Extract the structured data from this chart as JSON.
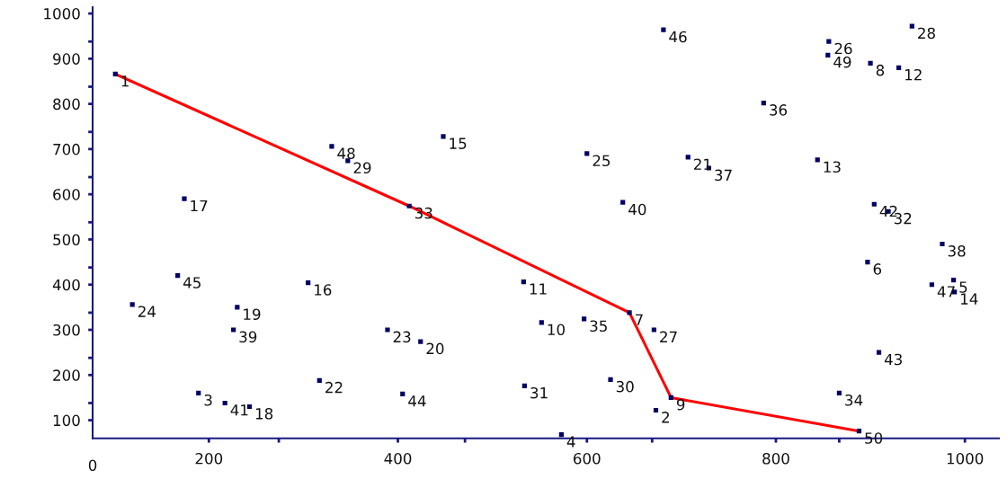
{
  "chart_data": {
    "type": "scatter",
    "xlim": [
      77,
      1036
    ],
    "ylim": [
      60,
      1014
    ],
    "xticks": [
      {
        "value": 200,
        "label": "200"
      },
      {
        "value": 274,
        "label": null
      },
      {
        "value": 400,
        "label": "400"
      },
      {
        "value": 471,
        "label": null
      },
      {
        "value": 600,
        "label": "600"
      },
      {
        "value": 669,
        "label": null
      },
      {
        "value": 800,
        "label": "800"
      },
      {
        "value": 867,
        "label": null
      },
      {
        "value": 1000,
        "label": "1000"
      }
    ],
    "yticks": [
      {
        "value": 138,
        "label": null
      },
      {
        "value": 100,
        "label": "100"
      },
      {
        "value": 200,
        "label": "200"
      },
      {
        "value": 238,
        "label": null
      },
      {
        "value": 300,
        "label": "300"
      },
      {
        "value": 338,
        "label": null
      },
      {
        "value": 400,
        "label": "400"
      },
      {
        "value": 438,
        "label": null
      },
      {
        "value": 500,
        "label": "500"
      },
      {
        "value": 538,
        "label": null
      },
      {
        "value": 600,
        "label": "600"
      },
      {
        "value": 638,
        "label": null
      },
      {
        "value": 700,
        "label": "700"
      },
      {
        "value": 738,
        "label": null
      },
      {
        "value": 800,
        "label": "800"
      },
      {
        "value": 838,
        "label": null
      },
      {
        "value": 900,
        "label": "900"
      },
      {
        "value": 938,
        "label": null
      },
      {
        "value": 1000,
        "label": "1000"
      }
    ],
    "annotations": [
      "0",
      {
        "text": "1",
        "x": 101,
        "y": 866
      },
      {
        "text": "2",
        "x": 673,
        "y": 122
      },
      {
        "text": "3",
        "x": 189,
        "y": 160
      },
      {
        "text": "4",
        "x": 573,
        "y": 68
      },
      {
        "text": "5",
        "x": 988,
        "y": 410
      },
      {
        "text": "6",
        "x": 897,
        "y": 450
      },
      {
        "text": "7",
        "x": 645,
        "y": 338
      },
      {
        "text": "8",
        "x": 900,
        "y": 890
      },
      {
        "text": "9",
        "x": 689,
        "y": 150
      },
      {
        "text": "10",
        "x": 552,
        "y": 316
      },
      {
        "text": "11",
        "x": 533,
        "y": 406
      },
      {
        "text": "12",
        "x": 930,
        "y": 880
      },
      {
        "text": "13",
        "x": 844,
        "y": 676
      },
      {
        "text": "14",
        "x": 989,
        "y": 384
      },
      {
        "text": "15",
        "x": 448,
        "y": 728
      },
      {
        "text": "16",
        "x": 305,
        "y": 404
      },
      {
        "text": "17",
        "x": 174,
        "y": 590
      },
      {
        "text": "18",
        "x": 243,
        "y": 130
      },
      {
        "text": "19",
        "x": 230,
        "y": 350
      },
      {
        "text": "20",
        "x": 424,
        "y": 274
      },
      {
        "text": "21",
        "x": 707,
        "y": 682
      },
      {
        "text": "22",
        "x": 317,
        "y": 188
      },
      {
        "text": "23",
        "x": 389,
        "y": 300
      },
      {
        "text": "24",
        "x": 119,
        "y": 356
      },
      {
        "text": "25",
        "x": 600,
        "y": 690
      },
      {
        "text": "26",
        "x": 856,
        "y": 938
      },
      {
        "text": "27",
        "x": 671,
        "y": 300
      },
      {
        "text": "28",
        "x": 944,
        "y": 972
      },
      {
        "text": "29",
        "x": 347,
        "y": 674
      },
      {
        "text": "30",
        "x": 625,
        "y": 190
      },
      {
        "text": "31",
        "x": 534,
        "y": 176
      },
      {
        "text": "32",
        "x": 919,
        "y": 562
      },
      {
        "text": "33",
        "x": 412,
        "y": 574
      },
      {
        "text": "34",
        "x": 867,
        "y": 160
      },
      {
        "text": "35",
        "x": 597,
        "y": 324
      },
      {
        "text": "36",
        "x": 787,
        "y": 802
      },
      {
        "text": "37",
        "x": 729,
        "y": 658
      },
      {
        "text": "38",
        "x": 976,
        "y": 490
      },
      {
        "text": "39",
        "x": 226,
        "y": 300
      },
      {
        "text": "40",
        "x": 638,
        "y": 582
      },
      {
        "text": "41",
        "x": 217,
        "y": 138
      },
      {
        "text": "42",
        "x": 904,
        "y": 578
      },
      {
        "text": "43",
        "x": 909,
        "y": 250
      },
      {
        "text": "44",
        "x": 405,
        "y": 158
      },
      {
        "text": "45",
        "x": 167,
        "y": 420
      },
      {
        "text": "46",
        "x": 681,
        "y": 964
      },
      {
        "text": "47",
        "x": 965,
        "y": 400
      },
      {
        "text": "48",
        "x": 330,
        "y": 706
      },
      {
        "text": "49",
        "x": 855,
        "y": 908
      },
      {
        "text": "50",
        "x": 888,
        "y": 76
      }
    ],
    "grid": false,
    "legend": false,
    "marker": "square",
    "series": [
      {
        "color": "#000066",
        "x": [
          101,
          673,
          189,
          573,
          988,
          897,
          645,
          900,
          689,
          552,
          533,
          930,
          844,
          989,
          448,
          305,
          174,
          243,
          230,
          424,
          707,
          317,
          389,
          119,
          600,
          856,
          671,
          944,
          347,
          625,
          534,
          919,
          412,
          867,
          597,
          787,
          729,
          976,
          226,
          638,
          217,
          904,
          909,
          405,
          167,
          681,
          965,
          330,
          855,
          888
        ],
        "values": [
          866,
          122,
          160,
          68,
          410,
          450,
          338,
          890,
          150,
          316,
          406,
          880,
          676,
          384,
          728,
          404,
          590,
          130,
          350,
          274,
          682,
          188,
          300,
          356,
          690,
          938,
          300,
          972,
          674,
          190,
          176,
          562,
          574,
          160,
          324,
          802,
          658,
          490,
          300,
          582,
          138,
          578,
          250,
          158,
          420,
          964,
          400,
          706,
          908,
          76
        ]
      },
      {
        "type": "line",
        "color": "#ff0000",
        "line_style": "solid",
        "marker": "none",
        "x": [
          101,
          412,
          645,
          689,
          888
        ],
        "values": [
          866,
          574,
          338,
          150,
          76
        ]
      }
    ]
  }
}
